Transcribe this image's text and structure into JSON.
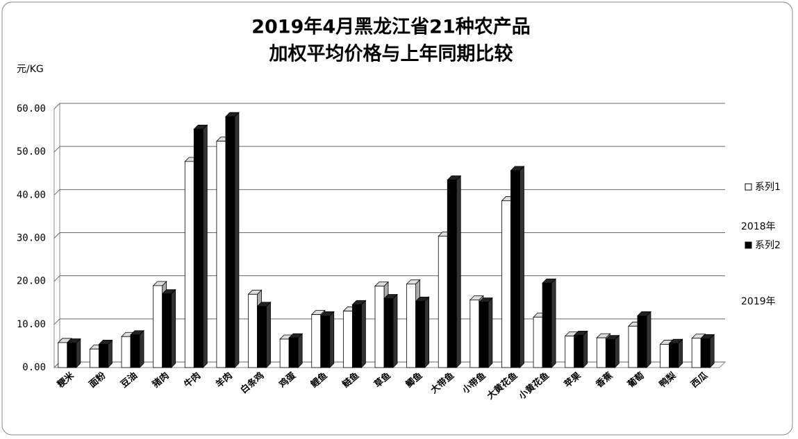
{
  "chart_data": {
    "type": "bar3d",
    "title": "2019年4月黑龙江省21种农产品",
    "subtitle": "加权平均价格与上年同期比较",
    "y_label": "元/KG",
    "categories": [
      "粳米",
      "面粉",
      "豆油",
      "猪肉",
      "牛肉",
      "羊肉",
      "白条鸡",
      "鸡蛋",
      "鲤鱼",
      "鲢鱼",
      "草鱼",
      "鲫鱼",
      "大带鱼",
      "小带鱼",
      "大黄花鱼",
      "小黄花鱼",
      "苹果",
      "香蕉",
      "葡萄",
      "鸭梨",
      "西瓜"
    ],
    "series": [
      {
        "name": "系列1",
        "color": "#ffffff",
        "values": [
          5.8,
          4.3,
          7.2,
          19.0,
          47.8,
          52.5,
          17.0,
          6.6,
          12.3,
          13.1,
          18.9,
          19.4,
          30.5,
          15.7,
          38.7,
          11.7,
          7.3,
          6.9,
          9.6,
          5.4,
          6.8
        ]
      },
      {
        "name": "系列2",
        "color": "#000000",
        "values": [
          5.7,
          5.4,
          7.6,
          17.1,
          55.3,
          58.2,
          14.2,
          6.9,
          12.0,
          14.6,
          16.0,
          15.4,
          43.5,
          15.2,
          45.7,
          19.6,
          7.5,
          6.5,
          12.0,
          5.6,
          6.7
        ]
      }
    ],
    "annotations": [
      "2018年",
      "2019年"
    ],
    "ylim": [
      0,
      60
    ],
    "yticks": [
      {
        "value": 0,
        "label": "0.00"
      },
      {
        "value": 10,
        "label": "10.00"
      },
      {
        "value": 20,
        "label": "20.00"
      },
      {
        "value": 30,
        "label": "30.00"
      },
      {
        "value": 40,
        "label": "40.00"
      },
      {
        "value": 50,
        "label": "50.00"
      },
      {
        "value": 60,
        "label": "60.00"
      }
    ],
    "grid": true
  }
}
